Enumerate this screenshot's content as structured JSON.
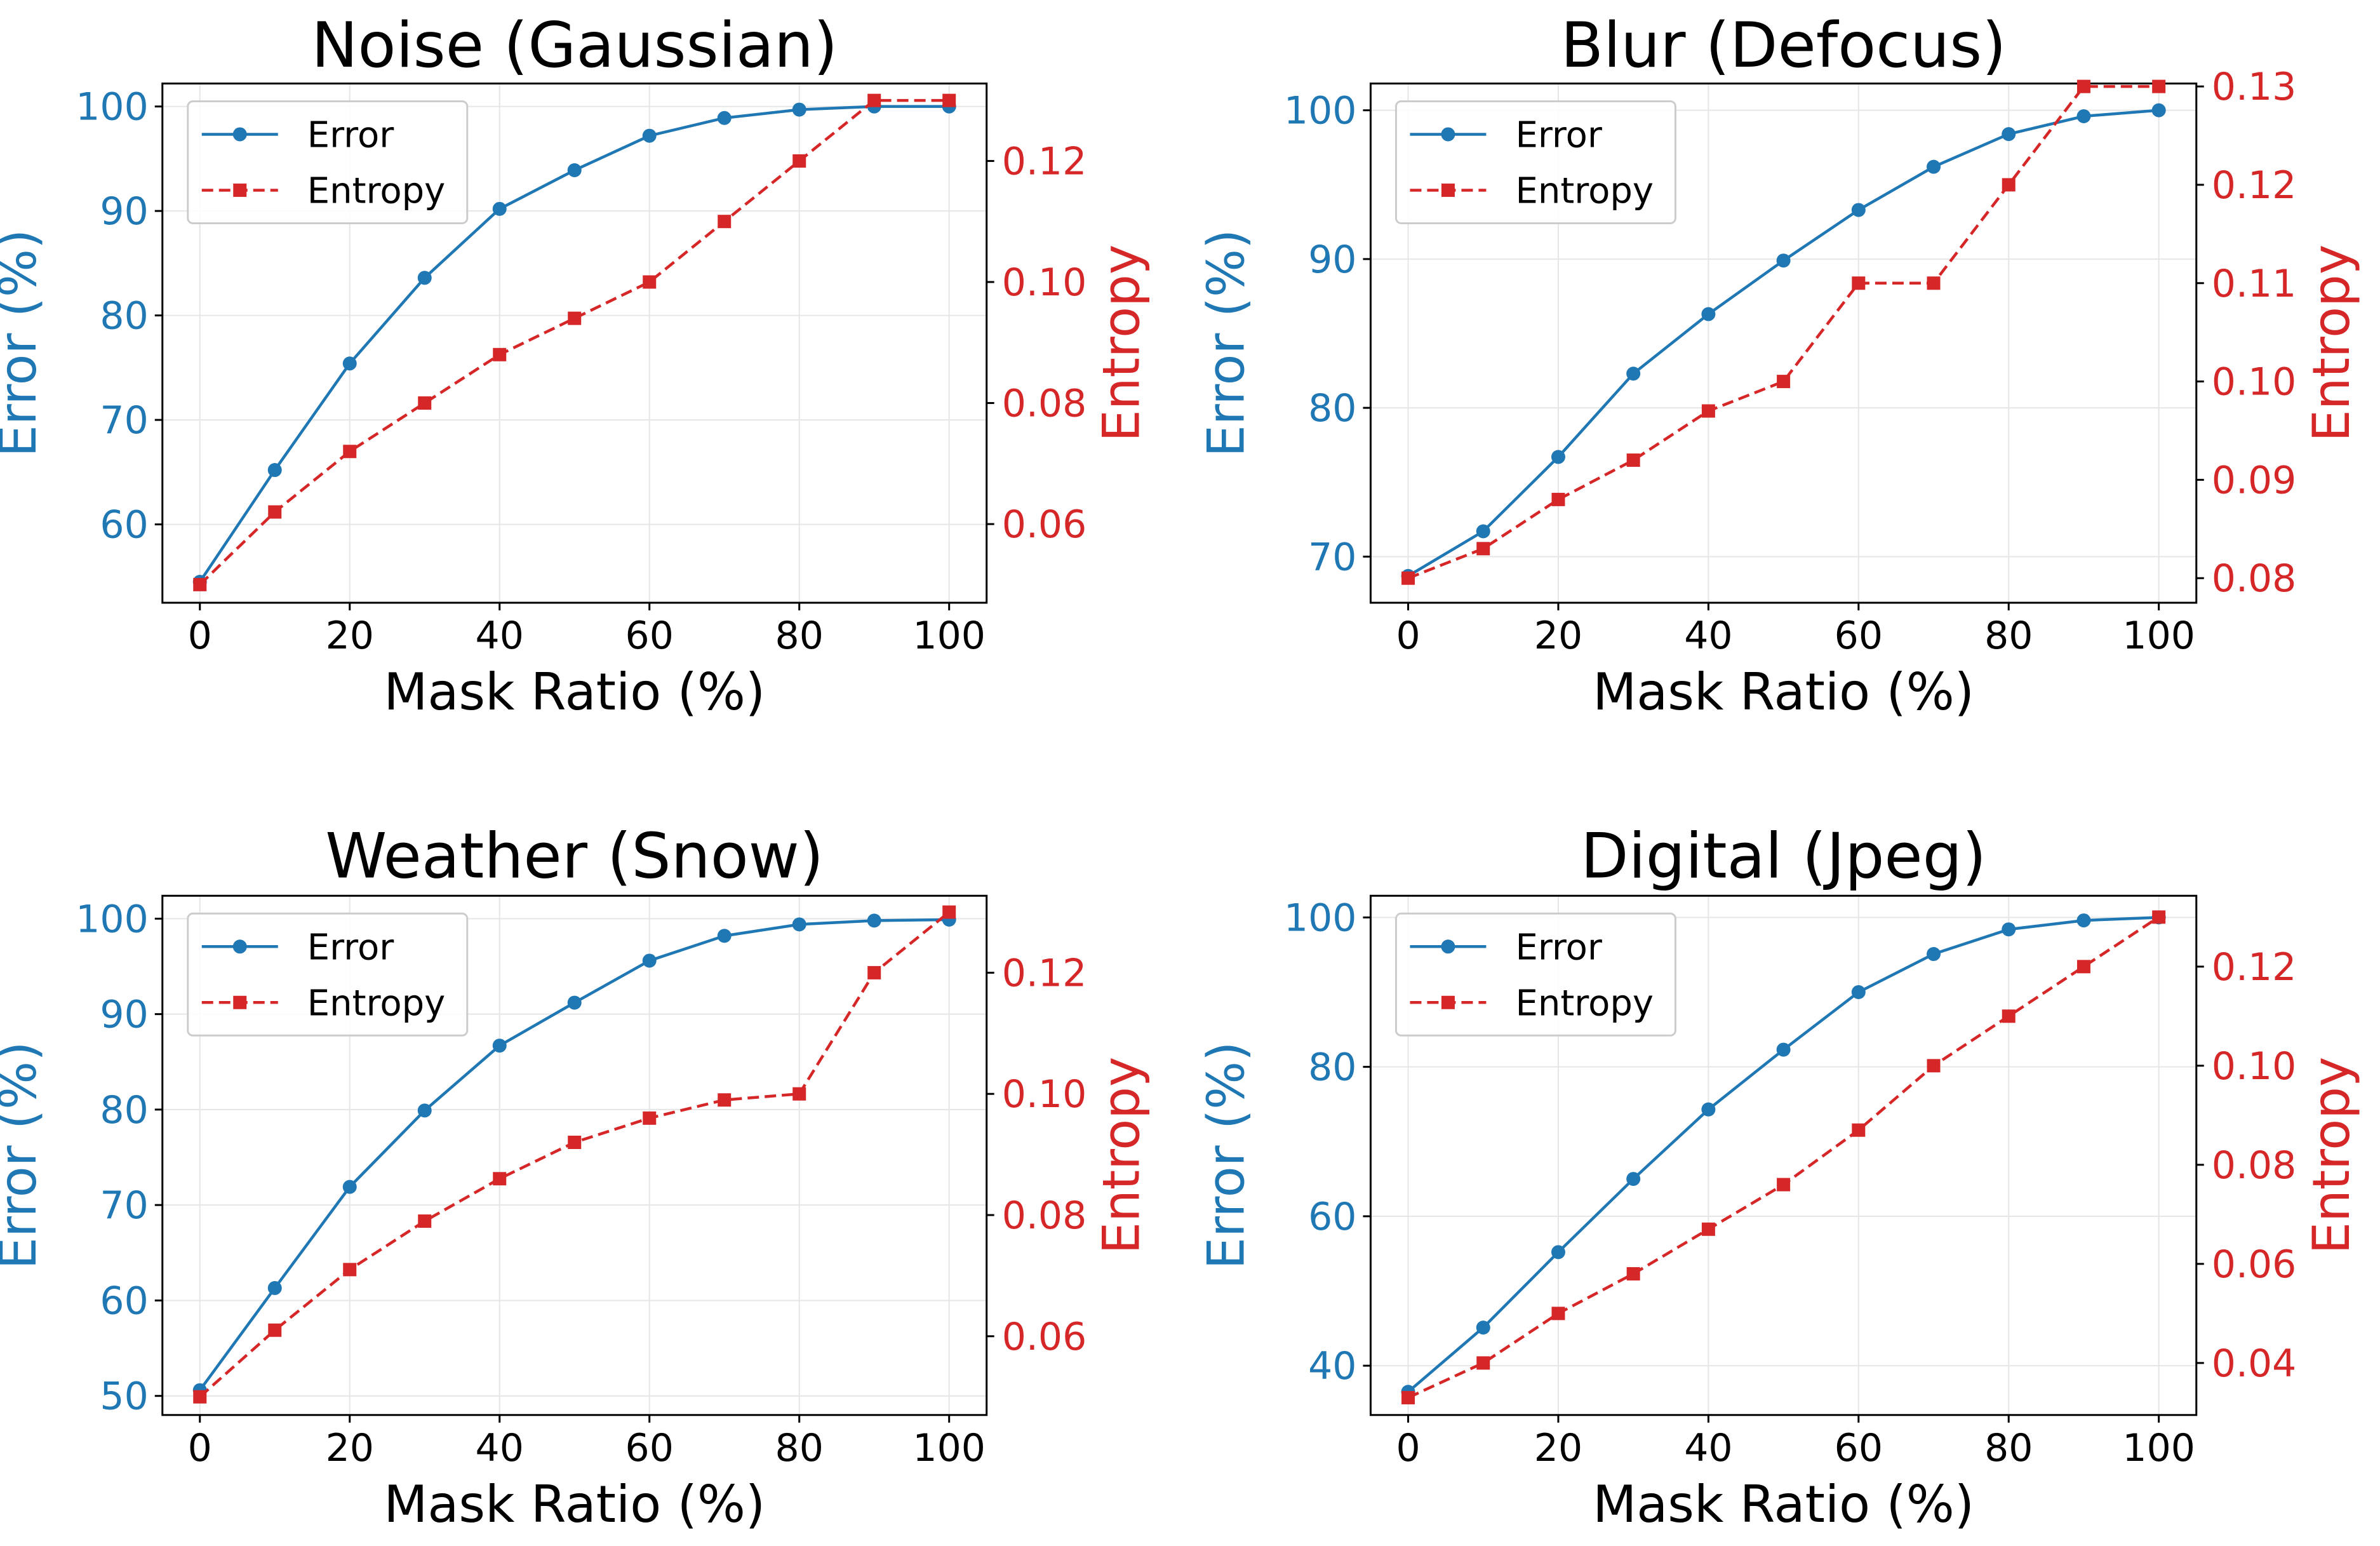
{
  "colors": {
    "error": "#1f77b4",
    "entropy": "#d62728"
  },
  "chart_data": [
    {
      "type": "line",
      "title": "Noise (Gaussian)",
      "xlabel": "Mask Ratio (%)",
      "ylabel_left": "Error (%)",
      "ylabel_right": "Entropy",
      "x": [
        0,
        10,
        20,
        30,
        40,
        50,
        60,
        70,
        80,
        90,
        100
      ],
      "xticks": [
        0,
        20,
        40,
        60,
        80,
        100
      ],
      "xtick_labels": [
        "0",
        "20",
        "40",
        "60",
        "80",
        "100"
      ],
      "xlim": [
        -5,
        105
      ],
      "ylim_left": [
        52.5,
        102.2
      ],
      "yticks_left": [
        60,
        70,
        80,
        90,
        100
      ],
      "ytick_labels_left": [
        "60",
        "70",
        "80",
        "90",
        "100"
      ],
      "ylim_right": [
        0.047,
        0.1328
      ],
      "yticks_right": [
        0.06,
        0.08,
        0.1,
        0.12
      ],
      "ytick_labels_right": [
        "0.06",
        "0.08",
        "0.10",
        "0.12"
      ],
      "series": [
        {
          "name": "Error",
          "axis": "left",
          "values": [
            54.5,
            65.2,
            75.4,
            83.6,
            90.2,
            93.9,
            97.2,
            98.9,
            99.7,
            100.0,
            100.0
          ]
        },
        {
          "name": "Entropy",
          "axis": "right",
          "values": [
            0.05,
            0.062,
            0.072,
            0.08,
            0.088,
            0.094,
            0.1,
            0.11,
            0.12,
            0.13,
            0.13
          ]
        }
      ],
      "legend": [
        "Error",
        "Entropy"
      ],
      "legend_loc": "upper-left",
      "grid": true
    },
    {
      "type": "line",
      "title": "Blur (Defocus)",
      "xlabel": "Mask Ratio (%)",
      "ylabel_left": "Error (%)",
      "ylabel_right": "Entropy",
      "x": [
        0,
        10,
        20,
        30,
        40,
        50,
        60,
        70,
        80,
        90,
        100
      ],
      "xticks": [
        0,
        20,
        40,
        60,
        80,
        100
      ],
      "xtick_labels": [
        "0",
        "20",
        "40",
        "60",
        "80",
        "100"
      ],
      "xlim": [
        -5,
        105
      ],
      "ylim_left": [
        66.9,
        101.8
      ],
      "yticks_left": [
        70,
        80,
        90,
        100
      ],
      "ytick_labels_left": [
        "70",
        "80",
        "90",
        "100"
      ],
      "ylim_right": [
        0.0775,
        0.1303
      ],
      "yticks_right": [
        0.08,
        0.09,
        0.1,
        0.11,
        0.12,
        0.13
      ],
      "ytick_labels_right": [
        "0.08",
        "0.09",
        "0.10",
        "0.11",
        "0.12",
        "0.13"
      ],
      "series": [
        {
          "name": "Error",
          "axis": "left",
          "values": [
            68.7,
            71.7,
            76.7,
            82.3,
            86.3,
            89.9,
            93.3,
            96.2,
            98.4,
            99.6,
            100.0
          ]
        },
        {
          "name": "Entropy",
          "axis": "right",
          "values": [
            0.08,
            0.083,
            0.088,
            0.092,
            0.097,
            0.1,
            0.11,
            0.11,
            0.12,
            0.13,
            0.13
          ]
        }
      ],
      "legend": [
        "Error",
        "Entropy"
      ],
      "legend_loc": "upper-left",
      "grid": true
    },
    {
      "type": "line",
      "title": "Weather (Snow)",
      "xlabel": "Mask Ratio (%)",
      "ylabel_left": "Error (%)",
      "ylabel_right": "Entropy",
      "x": [
        0,
        10,
        20,
        30,
        40,
        50,
        60,
        70,
        80,
        90,
        100
      ],
      "xticks": [
        0,
        20,
        40,
        60,
        80,
        100
      ],
      "xtick_labels": [
        "0",
        "20",
        "40",
        "60",
        "80",
        "100"
      ],
      "xlim": [
        -5,
        105
      ],
      "ylim_left": [
        48.0,
        102.4
      ],
      "yticks_left": [
        50,
        60,
        70,
        80,
        90,
        100
      ],
      "ytick_labels_left": [
        "50",
        "60",
        "70",
        "80",
        "90",
        "100"
      ],
      "ylim_right": [
        0.047,
        0.1327
      ],
      "yticks_right": [
        0.06,
        0.08,
        0.1,
        0.12
      ],
      "ytick_labels_right": [
        "0.06",
        "0.08",
        "0.10",
        "0.12"
      ],
      "series": [
        {
          "name": "Error",
          "axis": "left",
          "values": [
            50.6,
            61.3,
            71.9,
            79.9,
            86.7,
            91.2,
            95.6,
            98.2,
            99.4,
            99.8,
            99.9
          ]
        },
        {
          "name": "Entropy",
          "axis": "right",
          "values": [
            0.05,
            0.061,
            0.071,
            0.079,
            0.086,
            0.092,
            0.096,
            0.099,
            0.1,
            0.12,
            0.13
          ]
        }
      ],
      "legend": [
        "Error",
        "Entropy"
      ],
      "legend_loc": "upper-left",
      "grid": true
    },
    {
      "type": "line",
      "title": "Digital (Jpeg)",
      "xlabel": "Mask Ratio (%)",
      "ylabel_left": "Error (%)",
      "ylabel_right": "Entropy",
      "x": [
        0,
        10,
        20,
        30,
        40,
        50,
        60,
        70,
        80,
        90,
        100
      ],
      "xticks": [
        0,
        20,
        40,
        60,
        80,
        100
      ],
      "xtick_labels": [
        "0",
        "20",
        "40",
        "60",
        "80",
        "100"
      ],
      "xlim": [
        -5,
        105
      ],
      "ylim_left": [
        33.4,
        102.9
      ],
      "yticks_left": [
        40,
        60,
        80,
        100
      ],
      "ytick_labels_left": [
        "40",
        "60",
        "80",
        "100"
      ],
      "ylim_right": [
        0.0295,
        0.1343
      ],
      "yticks_right": [
        0.04,
        0.06,
        0.08,
        0.1,
        0.12
      ],
      "ytick_labels_right": [
        "0.04",
        "0.06",
        "0.08",
        "0.10",
        "0.12"
      ],
      "series": [
        {
          "name": "Error",
          "axis": "left",
          "values": [
            36.5,
            45.1,
            55.2,
            65.0,
            74.3,
            82.3,
            90.0,
            95.1,
            98.4,
            99.6,
            100.0
          ]
        },
        {
          "name": "Entropy",
          "axis": "right",
          "values": [
            0.033,
            0.04,
            0.05,
            0.058,
            0.067,
            0.076,
            0.087,
            0.1,
            0.11,
            0.12,
            0.13
          ]
        }
      ],
      "legend": [
        "Error",
        "Entropy"
      ],
      "legend_loc": "upper-left",
      "grid": true
    }
  ]
}
